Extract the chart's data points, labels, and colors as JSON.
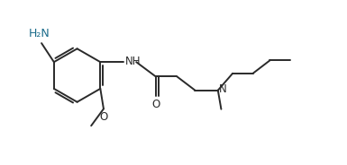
{
  "bg_color": "#ffffff",
  "line_color": "#2a2a2a",
  "text_color": "#2a2a2a",
  "label_color": "#1a6b8a",
  "line_width": 1.4,
  "font_size": 8.5,
  "fig_width": 3.85,
  "fig_height": 1.84,
  "dpi": 100,
  "xlim": [
    0,
    10
  ],
  "ylim": [
    0,
    5
  ]
}
